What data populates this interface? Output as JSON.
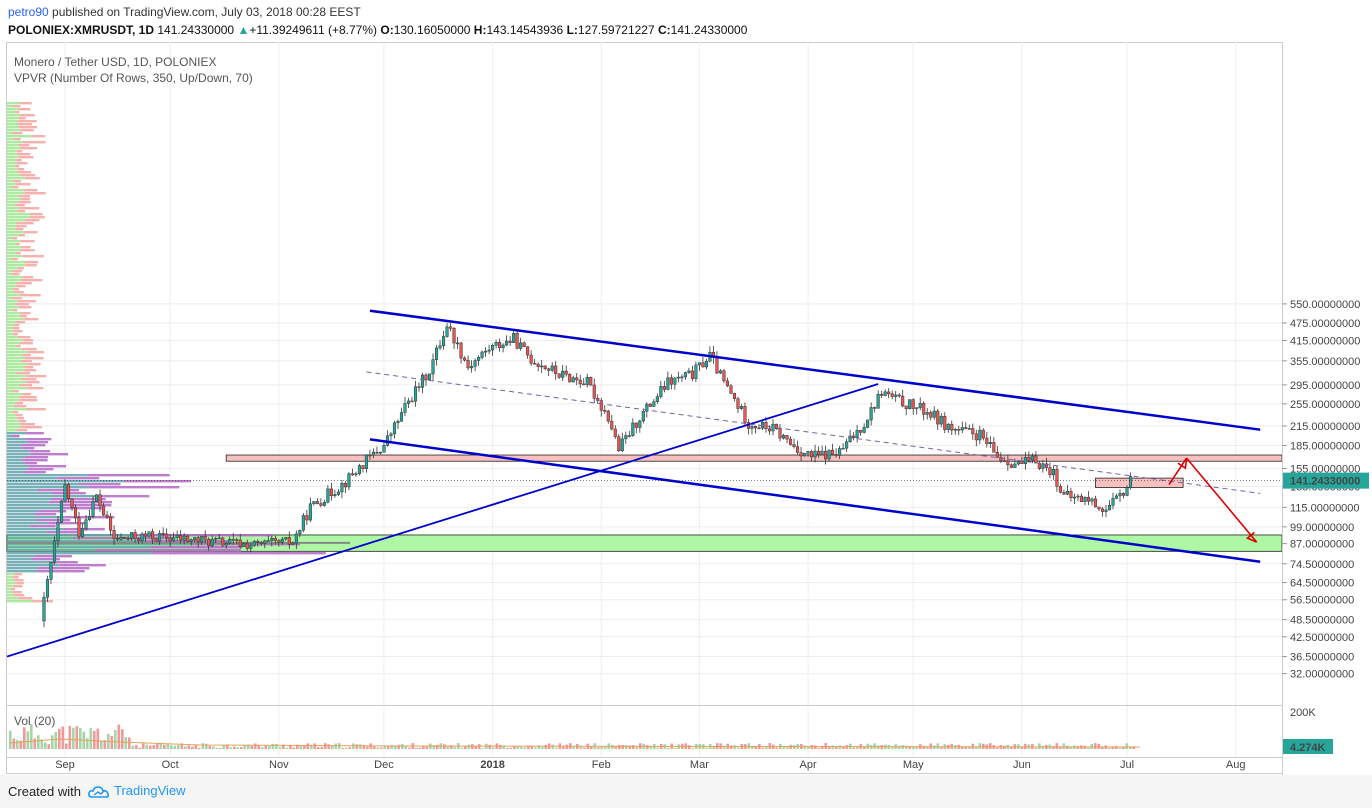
{
  "header": {
    "author": "petro90",
    "published_text": "published on TradingView.com, July 03, 2018 00:28 EEST",
    "symbol": "POLONIEX:XMRUSDT, 1D",
    "last": "141.24330000",
    "change": "+11.39249611 (+8.77%)",
    "open_label": "O:",
    "open": "130.16050000",
    "high_label": "H:",
    "high": "143.14543936",
    "low_label": "L:",
    "low": "127.59721227",
    "close_label": "C:",
    "close": "141.24330000"
  },
  "legend": {
    "instrument": "Monero / Tether USD, 1D, POLONIEX",
    "indicator": "VPVR (Number Of Rows, 350, Up/Down, 70)",
    "volume": "Vol (20)"
  },
  "colors": {
    "up": "#26a69a",
    "down": "#ef5350",
    "trendline": "#0000cc",
    "forecast": "#e00000",
    "support_zone": "#aef7a4",
    "resistance_zone": "#f9c0c0",
    "vp_up_outer": "#9be88f",
    "vp_down_outer": "#f4a3a0",
    "vp_up_value": "#5fa3aa",
    "vp_down_value": "#b367c5",
    "price_tag": "#26a69a"
  },
  "chart_data": {
    "type": "candlestick",
    "scale": "log",
    "x_ticks": [
      "Sep",
      "Oct",
      "Nov",
      "Dec",
      "2018",
      "Feb",
      "Mar",
      "Apr",
      "May",
      "Jun",
      "Jul",
      "Aug"
    ],
    "y_ticks": [
      "550.00000000",
      "475.00000000",
      "415.00000000",
      "355.00000000",
      "295.00000000",
      "255.00000000",
      "215.00000000",
      "185.00000000",
      "155.00000000",
      "135.00000000",
      "115.00000000",
      "99.00000000",
      "87.00000000",
      "74.50000000",
      "64.50000000",
      "56.50000000",
      "48.50000000",
      "42.50000000",
      "36.50000000",
      "32.00000000"
    ],
    "last_price_label": "141.24330000",
    "volume_axis_top": "200K",
    "volume_last_label": "4.274K",
    "support_zone": [
      82,
      93
    ],
    "resistance_zone": [
      164,
      172
    ],
    "small_box": [
      134,
      144
    ],
    "price_path": [
      [
        "2017-08-25",
        48
      ],
      [
        "2017-09-01",
        135
      ],
      [
        "2017-09-05",
        95
      ],
      [
        "2017-09-10",
        125
      ],
      [
        "2017-09-15",
        90
      ],
      [
        "2017-09-25",
        92
      ],
      [
        "2017-10-05",
        90
      ],
      [
        "2017-10-15",
        88
      ],
      [
        "2017-10-25",
        86
      ],
      [
        "2017-11-05",
        88
      ],
      [
        "2017-11-10",
        115
      ],
      [
        "2017-11-20",
        140
      ],
      [
        "2017-11-26",
        165
      ],
      [
        "2017-12-01",
        185
      ],
      [
        "2017-12-08",
        260
      ],
      [
        "2017-12-14",
        330
      ],
      [
        "2017-12-19",
        470
      ],
      [
        "2017-12-25",
        340
      ],
      [
        "2017-12-31",
        390
      ],
      [
        "2018-01-07",
        420
      ],
      [
        "2018-01-12",
        360
      ],
      [
        "2018-01-20",
        320
      ],
      [
        "2018-01-28",
        300
      ],
      [
        "2018-02-03",
        230
      ],
      [
        "2018-02-06",
        180
      ],
      [
        "2018-02-12",
        230
      ],
      [
        "2018-02-20",
        300
      ],
      [
        "2018-02-27",
        320
      ],
      [
        "2018-03-04",
        370
      ],
      [
        "2018-03-08",
        300
      ],
      [
        "2018-03-15",
        220
      ],
      [
        "2018-03-22",
        210
      ],
      [
        "2018-03-29",
        180
      ],
      [
        "2018-04-02",
        170
      ],
      [
        "2018-04-10",
        175
      ],
      [
        "2018-04-17",
        220
      ],
      [
        "2018-04-22",
        280
      ],
      [
        "2018-04-27",
        260
      ],
      [
        "2018-05-05",
        240
      ],
      [
        "2018-05-12",
        210
      ],
      [
        "2018-05-20",
        200
      ],
      [
        "2018-05-25",
        170
      ],
      [
        "2018-05-31",
        160
      ],
      [
        "2018-06-05",
        165
      ],
      [
        "2018-06-10",
        150
      ],
      [
        "2018-06-13",
        125
      ],
      [
        "2018-06-20",
        122
      ],
      [
        "2018-06-25",
        112
      ],
      [
        "2018-06-29",
        125
      ],
      [
        "2018-07-02",
        141
      ]
    ]
  }
}
